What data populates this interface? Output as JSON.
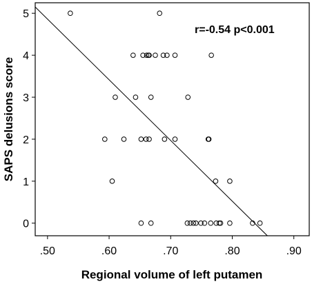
{
  "chart_data": {
    "type": "scatter",
    "xlabel": "Regional volume of left putamen",
    "ylabel": "SAPS delusions score",
    "xlim": [
      0.48,
      0.925
    ],
    "ylim": [
      -0.3,
      5.25
    ],
    "x_ticks": [
      ".50",
      ".60",
      ".70",
      ".80",
      ".90"
    ],
    "x_tick_values": [
      0.5,
      0.6,
      0.7,
      0.8,
      0.9
    ],
    "y_ticks": [
      "0",
      "1",
      "2",
      "3",
      "4",
      "5"
    ],
    "y_tick_values": [
      0,
      1,
      2,
      3,
      4,
      5
    ],
    "annotation": "r=-0.54  p<0.001",
    "grid": false,
    "marker": "open-circle",
    "fit_line": {
      "type": "linear",
      "from": [
        0.48,
        5.15
      ],
      "to": [
        0.857,
        -0.3
      ]
    },
    "points": [
      {
        "x": 0.537,
        "y": 5
      },
      {
        "x": 0.682,
        "y": 5
      },
      {
        "x": 0.639,
        "y": 4
      },
      {
        "x": 0.655,
        "y": 4
      },
      {
        "x": 0.661,
        "y": 4
      },
      {
        "x": 0.664,
        "y": 4
      },
      {
        "x": 0.665,
        "y": 4
      },
      {
        "x": 0.675,
        "y": 4
      },
      {
        "x": 0.688,
        "y": 4
      },
      {
        "x": 0.694,
        "y": 4
      },
      {
        "x": 0.707,
        "y": 4
      },
      {
        "x": 0.766,
        "y": 4
      },
      {
        "x": 0.61,
        "y": 3
      },
      {
        "x": 0.643,
        "y": 3
      },
      {
        "x": 0.668,
        "y": 3
      },
      {
        "x": 0.728,
        "y": 3
      },
      {
        "x": 0.593,
        "y": 2
      },
      {
        "x": 0.624,
        "y": 2
      },
      {
        "x": 0.652,
        "y": 2
      },
      {
        "x": 0.66,
        "y": 2
      },
      {
        "x": 0.665,
        "y": 2
      },
      {
        "x": 0.69,
        "y": 2
      },
      {
        "x": 0.707,
        "y": 2
      },
      {
        "x": 0.761,
        "y": 2
      },
      {
        "x": 0.762,
        "y": 2
      },
      {
        "x": 0.605,
        "y": 1
      },
      {
        "x": 0.773,
        "y": 1
      },
      {
        "x": 0.796,
        "y": 1
      },
      {
        "x": 0.652,
        "y": 0
      },
      {
        "x": 0.668,
        "y": 0
      },
      {
        "x": 0.727,
        "y": 0
      },
      {
        "x": 0.732,
        "y": 0
      },
      {
        "x": 0.737,
        "y": 0
      },
      {
        "x": 0.741,
        "y": 0
      },
      {
        "x": 0.749,
        "y": 0
      },
      {
        "x": 0.755,
        "y": 0
      },
      {
        "x": 0.765,
        "y": 0
      },
      {
        "x": 0.774,
        "y": 0
      },
      {
        "x": 0.779,
        "y": 0
      },
      {
        "x": 0.781,
        "y": 0
      },
      {
        "x": 0.796,
        "y": 0
      },
      {
        "x": 0.833,
        "y": 0
      },
      {
        "x": 0.845,
        "y": 0
      }
    ]
  }
}
